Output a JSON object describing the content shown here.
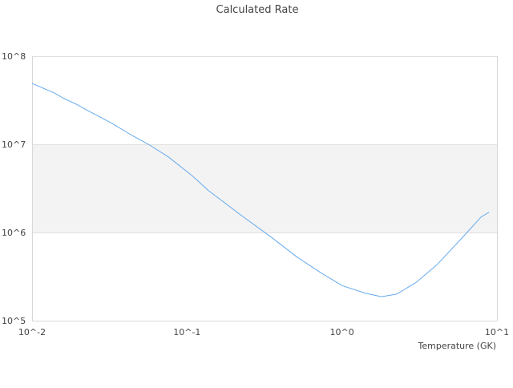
{
  "chart_data": {
    "type": "line",
    "title": "Calculated Rate",
    "xlabel": "Temperature (GK)",
    "ylabel": "",
    "xscale": "log",
    "yscale": "log",
    "xlim": [
      0.01,
      10
    ],
    "ylim": [
      100000,
      100000000
    ],
    "x_ticks": [
      0.01,
      0.1,
      1,
      10
    ],
    "x_tick_labels": [
      "10^-2",
      "10^-1",
      "10^0",
      "10^1"
    ],
    "y_ticks": [
      100000,
      1000000,
      10000000,
      100000000
    ],
    "y_tick_labels": [
      "10^5",
      "10^6",
      "10^7",
      "10^8"
    ],
    "grid": "alternating horizontal bands",
    "colors": {
      "line": "#66aaee",
      "band": "#f3f3f3",
      "axis": "#d8d8d8"
    },
    "series": [
      {
        "x": [
          0.01,
          0.014,
          0.0161,
          0.0193,
          0.023,
          0.0275,
          0.0329,
          0.0442,
          0.0563,
          0.0757,
          0.108,
          0.137,
          0.222,
          0.357,
          0.51,
          0.73,
          1.0,
          1.42,
          1.8,
          2.25,
          3.0,
          4.1,
          6.2,
          7.9,
          8.9
        ],
        "y": [
          49000000,
          38000000,
          33000000,
          28500000,
          24000000,
          20400000,
          17200000,
          12600000,
          10000000,
          7200000,
          4400000,
          3000000,
          1580000,
          860000,
          530000,
          350000,
          250000,
          204000,
          187000,
          200000,
          270000,
          430000,
          940000,
          1500000,
          1700000
        ]
      }
    ]
  }
}
